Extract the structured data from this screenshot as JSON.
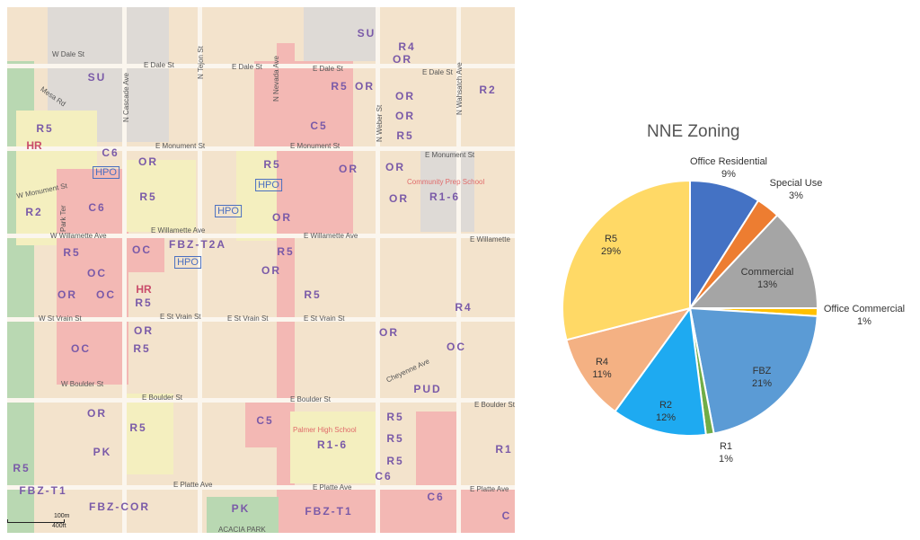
{
  "map": {
    "zones": [
      "SU",
      "R4",
      "OR",
      "SU",
      "R5",
      "OR",
      "OR",
      "R2",
      "OR",
      "R5",
      "HR",
      "C5",
      "R5",
      "OR",
      "R5",
      "OR",
      "OR",
      "C6",
      "R5",
      "OR",
      "OR",
      "R1-6",
      "R2",
      "C6",
      "R5",
      "OC",
      "FBZ-T2A",
      "R5",
      "OC",
      "OR",
      "OR",
      "OC",
      "HR",
      "R5",
      "R5",
      "OR",
      "R4",
      "OR",
      "OC",
      "R5",
      "OC",
      "PUD",
      "OR",
      "R5",
      "C5",
      "R5",
      "R1-6",
      "R5",
      "PK",
      "R5",
      "R5",
      "C6",
      "C6",
      "FBZ-T1",
      "FBZ-COR",
      "PK",
      "FBZ-T1",
      "R1",
      "C"
    ],
    "hpo": [
      "HPO",
      "HPO",
      "HPO",
      "HPO"
    ],
    "streets": [
      "W Dale St",
      "E Dale St",
      "E Dale St",
      "E Dale St",
      "E Dale St",
      "N Cascade Ave",
      "N Tejon St",
      "N Nevada Ave",
      "N Weber St",
      "N Wahsatch Ave",
      "Mesa Rd",
      "E Monument St",
      "E Monument St",
      "E Monument St",
      "W Monument St",
      "E Willamette Ave",
      "E Willamette Ave",
      "W Willamette Ave",
      "E Willamette",
      "E St Vrain St",
      "E St Vrain St",
      "E St Vrain St",
      "W St Vrain St",
      "E Boulder St",
      "E Boulder St",
      "E Boulder St",
      "W Boulder St",
      "E Platte Ave",
      "E Platte Ave",
      "E Platte Ave",
      "Cheyenne Ave",
      "Park Ter",
      "ACACIA PARK",
      "Palmer High School",
      "Community Prep School"
    ],
    "scale": {
      "metric": "100m",
      "imperial": "400ft"
    }
  },
  "chart_data": {
    "type": "pie",
    "title": "NNE Zoning",
    "start": "12 o'clock, clockwise",
    "slices": [
      {
        "label": "Office Residential",
        "value": 9,
        "pct": "9%",
        "color": "#4472c4"
      },
      {
        "label": "Special Use",
        "value": 3,
        "pct": "3%",
        "color": "#ed7d31"
      },
      {
        "label": "Commercial",
        "value": 13,
        "pct": "13%",
        "color": "#a5a5a5"
      },
      {
        "label": "Office Commercial",
        "value": 1,
        "pct": "1%",
        "color": "#ffc000"
      },
      {
        "label": "FBZ",
        "value": 21,
        "pct": "21%",
        "color": "#5b9bd5"
      },
      {
        "label": "R1",
        "value": 1,
        "pct": "1%",
        "color": "#70ad47"
      },
      {
        "label": "R2",
        "value": 12,
        "pct": "12%",
        "color": "#1eaaf1"
      },
      {
        "label": "R4",
        "value": 11,
        "pct": "11%",
        "color": "#f4b183"
      },
      {
        "label": "R5",
        "value": 29,
        "pct": "29%",
        "color": "#ffd966"
      }
    ]
  }
}
